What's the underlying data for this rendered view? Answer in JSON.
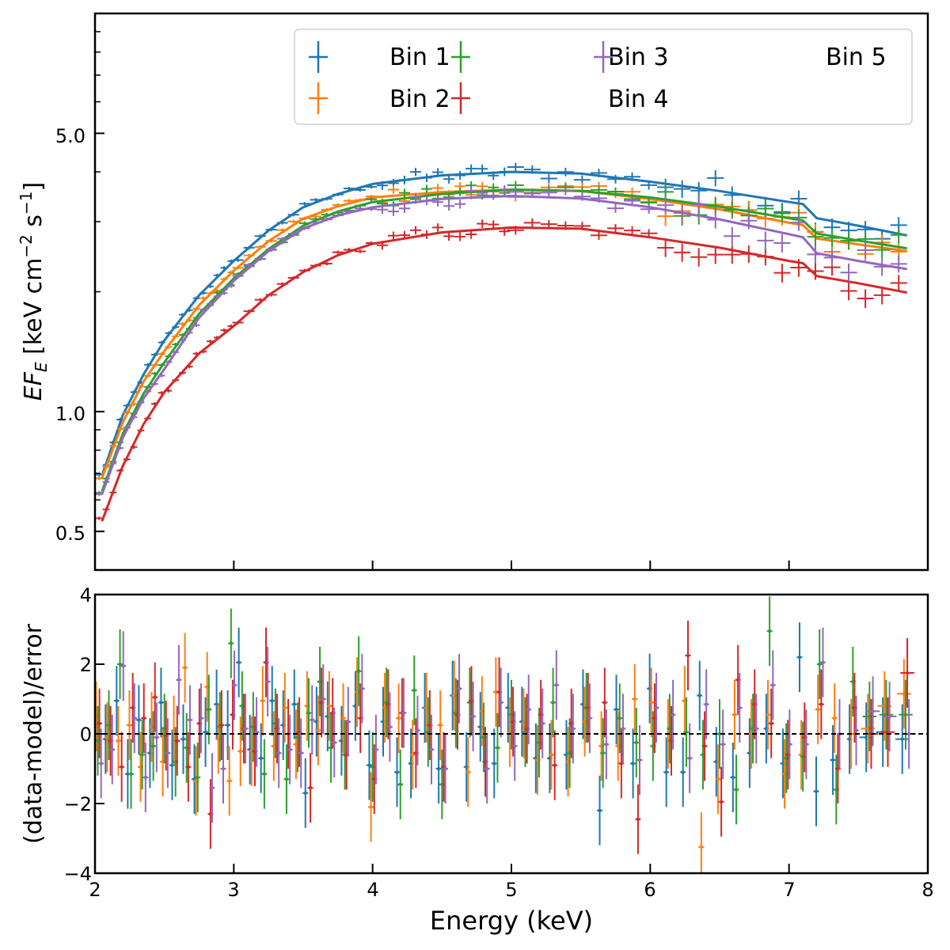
{
  "chart_data": [
    {
      "type": "line",
      "panel": "top",
      "title": "",
      "xlabel": "",
      "ylabel_main": "EF",
      "ylabel_sub": "E",
      "ylabel_units": " [keV cm",
      "ylabel_sup1": "−2",
      "ylabel_mid": " s",
      "ylabel_sup2": "−1",
      "ylabel_close": "]",
      "yscale": "log",
      "xlim": [
        2,
        8
      ],
      "ylim": [
        0.4,
        10
      ],
      "ytick_labels": [
        {
          "value": 0.5,
          "label": "0.5"
        },
        {
          "value": 1.0,
          "label": "1.0"
        },
        {
          "value": 5.0,
          "label": "5.0"
        }
      ],
      "y_minor_ticks": [
        0.4,
        0.6,
        0.7,
        0.8,
        0.9,
        2,
        3,
        4,
        6,
        7,
        8,
        9
      ],
      "xticks": [
        2,
        3,
        4,
        5,
        6,
        7,
        8
      ],
      "grid": false,
      "legend": {
        "placement": "top-right",
        "columns": 3,
        "entries": [
          {
            "label": "Bin 1",
            "color": "#1f77b4"
          },
          {
            "label": "Bin 2",
            "color": "#ff7f0e"
          },
          {
            "label": "Bin 3",
            "color": "#2ca02c"
          },
          {
            "label": "Bin 4",
            "color": "#d62728"
          },
          {
            "label": "Bin 5",
            "color": "#9467bd"
          }
        ]
      },
      "model_x": [
        2.05,
        2.2,
        2.35,
        2.5,
        2.75,
        3.0,
        3.25,
        3.5,
        3.75,
        4.0,
        4.5,
        5.0,
        5.5,
        6.0,
        6.5,
        7.0,
        7.1,
        7.2,
        7.5,
        7.85
      ],
      "series": [
        {
          "name": "Bin 1",
          "color": "#1f77b4",
          "model": [
            0.69,
            0.98,
            1.24,
            1.51,
            1.96,
            2.39,
            2.85,
            3.26,
            3.52,
            3.73,
            3.92,
            4.0,
            3.96,
            3.78,
            3.58,
            3.36,
            3.32,
            3.06,
            2.93,
            2.77
          ]
        },
        {
          "name": "Bin 2",
          "color": "#ff7f0e",
          "model": [
            0.68,
            0.94,
            1.19,
            1.42,
            1.85,
            2.26,
            2.68,
            3.05,
            3.28,
            3.45,
            3.56,
            3.61,
            3.58,
            3.42,
            3.22,
            2.98,
            2.94,
            2.72,
            2.63,
            2.53
          ]
        },
        {
          "name": "Bin 3",
          "color": "#2ca02c",
          "model": [
            0.63,
            0.88,
            1.11,
            1.33,
            1.76,
            2.16,
            2.56,
            2.93,
            3.18,
            3.36,
            3.52,
            3.61,
            3.58,
            3.45,
            3.27,
            3.06,
            3.02,
            2.8,
            2.69,
            2.57
          ]
        },
        {
          "name": "Bin 4",
          "color": "#d62728",
          "model": [
            0.53,
            0.73,
            0.93,
            1.12,
            1.4,
            1.64,
            1.96,
            2.24,
            2.47,
            2.64,
            2.82,
            2.9,
            2.88,
            2.74,
            2.58,
            2.39,
            2.36,
            2.19,
            2.1,
            1.99
          ]
        },
        {
          "name": "Bin 5",
          "color": "#9467bd",
          "model": [
            0.62,
            0.86,
            1.08,
            1.28,
            1.72,
            2.13,
            2.53,
            2.88,
            3.11,
            3.26,
            3.42,
            3.48,
            3.43,
            3.26,
            3.04,
            2.79,
            2.74,
            2.5,
            2.39,
            2.28
          ]
        }
      ],
      "data_note": "error-bar points scatter around each model with ~3% noise; x bin width ~0.05 keV at low E growing to ~0.15 keV at high E"
    },
    {
      "type": "scatter",
      "panel": "bottom",
      "xlabel": "Energy (keV)",
      "ylabel": "(data-model)/error",
      "xlim": [
        2,
        8
      ],
      "ylim": [
        -4,
        4
      ],
      "xtick_labels": [
        {
          "value": 2,
          "label": "2"
        },
        {
          "value": 3,
          "label": "3"
        },
        {
          "value": 4,
          "label": "4"
        },
        {
          "value": 5,
          "label": "5"
        },
        {
          "value": 6,
          "label": "6"
        },
        {
          "value": 7,
          "label": "7"
        },
        {
          "value": 8,
          "label": "8"
        }
      ],
      "ytick_labels": [
        {
          "value": -4,
          "label": "−4"
        },
        {
          "value": -2,
          "label": "−2"
        },
        {
          "value": 0,
          "label": "0"
        },
        {
          "value": 2,
          "label": "2"
        },
        {
          "value": 4,
          "label": "4"
        }
      ],
      "reference_line": {
        "y": 0,
        "style": "dashed",
        "color": "#000000"
      },
      "grid": false,
      "series": [
        {
          "name": "Bin 1",
          "color": "#1f77b4",
          "x": [
            2.02,
            2.1,
            2.18,
            2.26,
            2.34,
            2.42,
            2.5,
            2.58,
            2.66,
            2.74,
            2.82,
            2.9,
            2.98,
            3.06,
            3.14,
            3.22,
            3.3,
            3.38,
            3.46,
            3.54,
            3.62,
            3.7,
            3.8,
            3.9,
            4.0,
            4.1,
            4.2,
            4.3,
            4.4,
            4.5,
            4.6,
            4.7,
            4.8,
            4.9,
            5.0,
            5.1,
            5.2,
            5.3,
            5.42,
            5.54,
            5.66,
            5.78,
            5.9,
            6.02,
            6.14,
            6.26,
            6.38,
            6.5,
            6.62,
            6.74,
            6.86,
            6.98,
            7.1,
            7.22,
            7.34,
            7.46,
            7.58,
            7.7,
            7.84
          ],
          "y": [
            0.2,
            -0.15,
            0.95,
            -1.15,
            0.4,
            -0.55,
            0.9,
            -0.9,
            -0.15,
            -1.3,
            0.05,
            0.85,
            0.25,
            2.05,
            -0.45,
            -0.7,
            0.95,
            0.25,
            0.85,
            -1.7,
            0.35,
            0.5,
            -0.2,
            0.8,
            -0.9,
            0.35,
            -1.1,
            -0.85,
            0.75,
            -1.0,
            1.1,
            -0.95,
            0.2,
            -0.85,
            0.75,
            0.35,
            -0.7,
            -0.7,
            -0.6,
            0.85,
            -2.2,
            0.7,
            -0.85,
            1.3,
            -1.1,
            -1.1,
            1.1,
            -0.8,
            -1.25,
            -0.55,
            0.15,
            -0.85,
            2.2,
            -1.65,
            -0.75,
            -0.15,
            -0.1,
            0.05,
            -0.15
          ],
          "err": 1.0
        },
        {
          "name": "Bin 2",
          "color": "#ff7f0e",
          "x": [
            2.02,
            2.1,
            2.18,
            2.26,
            2.34,
            2.42,
            2.5,
            2.58,
            2.66,
            2.74,
            2.82,
            2.9,
            2.98,
            3.06,
            3.14,
            3.22,
            3.3,
            3.38,
            3.46,
            3.54,
            3.62,
            3.7,
            3.8,
            3.9,
            4.0,
            4.1,
            4.2,
            4.3,
            4.4,
            4.5,
            4.6,
            4.7,
            4.8,
            4.9,
            5.0,
            5.1,
            5.2,
            5.3,
            5.42,
            5.54,
            5.66,
            5.78,
            5.9,
            6.02,
            6.14,
            6.26,
            6.38,
            6.5,
            6.62,
            6.74,
            6.86,
            6.98,
            7.1,
            7.22,
            7.34,
            7.46,
            7.58,
            7.7,
            7.84
          ],
          "y": [
            0.5,
            -0.1,
            -0.2,
            0.25,
            -0.95,
            0.2,
            -0.8,
            0.1,
            1.9,
            -1.35,
            1.35,
            -0.15,
            -1.35,
            -0.5,
            -0.5,
            0.95,
            -0.35,
            0.75,
            -0.3,
            0.8,
            0.1,
            0.8,
            0.45,
            1.2,
            -2.1,
            0.75,
            0.45,
            -0.6,
            0.75,
            0.25,
            1.1,
            -1.1,
            0.65,
            1.2,
            0.05,
            0.3,
            -0.75,
            -0.6,
            -0.8,
            0.35,
            -0.35,
            -0.35,
            1.0,
            0.9,
            0.0,
            0.95,
            -3.25,
            -1.3,
            0.55,
            0.0,
            0.55,
            -1.15,
            -0.6,
            0.7,
            0.45,
            0.0,
            0.15,
            0.8,
            1.15
          ],
          "err": 1.0
        },
        {
          "name": "Bin 3",
          "color": "#2ca02c",
          "x": [
            2.02,
            2.1,
            2.18,
            2.26,
            2.34,
            2.42,
            2.5,
            2.58,
            2.66,
            2.74,
            2.82,
            2.9,
            2.98,
            3.06,
            3.14,
            3.22,
            3.3,
            3.38,
            3.46,
            3.54,
            3.62,
            3.7,
            3.8,
            3.9,
            4.0,
            4.1,
            4.2,
            4.3,
            4.4,
            4.5,
            4.6,
            4.7,
            4.8,
            4.9,
            5.0,
            5.1,
            5.2,
            5.3,
            5.42,
            5.54,
            5.66,
            5.78,
            5.9,
            6.02,
            6.14,
            6.26,
            6.38,
            6.5,
            6.62,
            6.74,
            6.86,
            6.98,
            7.1,
            7.22,
            7.34,
            7.46,
            7.58,
            7.7,
            7.84
          ],
          "y": [
            -0.2,
            0.25,
            2.0,
            -1.15,
            -0.6,
            -0.35,
            0.15,
            -0.8,
            -0.4,
            -1.25,
            0.7,
            0.2,
            2.6,
            0.8,
            0.2,
            -1.15,
            0.3,
            -1.3,
            -0.1,
            0.6,
            1.5,
            -0.4,
            -0.6,
            1.8,
            -0.95,
            0.9,
            -1.45,
            1.25,
            0.05,
            -1.45,
            0.6,
            0.9,
            -0.1,
            -0.4,
            0.55,
            0.05,
            -0.25,
            0.9,
            -0.55,
            0.75,
            -0.55,
            0.45,
            -0.25,
            -0.35,
            0.15,
            0.05,
            -0.6,
            0.0,
            -1.6,
            0.15,
            2.95,
            -0.7,
            -0.65,
            2.0,
            -1.6,
            1.5,
            0.5,
            0.55,
            0.55
          ],
          "err": 1.0
        },
        {
          "name": "Bin 4",
          "color": "#d62728",
          "x": [
            2.02,
            2.1,
            2.18,
            2.26,
            2.34,
            2.42,
            2.5,
            2.58,
            2.66,
            2.74,
            2.82,
            2.9,
            2.98,
            3.06,
            3.14,
            3.22,
            3.3,
            3.38,
            3.46,
            3.54,
            3.62,
            3.7,
            3.8,
            3.9,
            4.0,
            4.1,
            4.2,
            4.3,
            4.4,
            4.5,
            4.6,
            4.7,
            4.8,
            4.9,
            5.0,
            5.1,
            5.2,
            5.3,
            5.42,
            5.54,
            5.66,
            5.78,
            5.9,
            6.02,
            6.14,
            6.26,
            6.38,
            6.5,
            6.62,
            6.74,
            6.86,
            6.98,
            7.1,
            7.22,
            7.34,
            7.46,
            7.58,
            7.7,
            7.84
          ],
          "y": [
            0.3,
            -0.2,
            -0.95,
            0.75,
            0.45,
            1.05,
            -0.05,
            -0.2,
            -0.95,
            0.3,
            -2.3,
            0.25,
            0.55,
            0.15,
            -0.5,
            2.05,
            0.15,
            0.0,
            0.05,
            -1.55,
            0.9,
            0.6,
            -0.6,
            0.45,
            -1.3,
            0.85,
            0.6,
            -0.55,
            0.25,
            -0.95,
            0.55,
            0.95,
            -0.8,
            1.2,
            0.35,
            0.15,
            0.55,
            -0.9,
            0.3,
            0.75,
            0.9,
            -0.85,
            -2.45,
            0.45,
            -0.2,
            2.25,
            -0.35,
            -1.95,
            1.55,
            0.85,
            0.3,
            -0.6,
            -0.1,
            0.85,
            -1.0,
            0.75,
            0.0,
            0.05,
            1.75
          ],
          "err": 1.0
        },
        {
          "name": "Bin 5",
          "color": "#9467bd",
          "x": [
            2.02,
            2.1,
            2.18,
            2.26,
            2.34,
            2.42,
            2.5,
            2.58,
            2.66,
            2.74,
            2.82,
            2.9,
            2.98,
            3.06,
            3.14,
            3.22,
            3.3,
            3.38,
            3.46,
            3.54,
            3.62,
            3.7,
            3.8,
            3.9,
            4.0,
            4.1,
            4.2,
            4.3,
            4.4,
            4.5,
            4.6,
            4.7,
            4.8,
            4.9,
            5.0,
            5.1,
            5.2,
            5.3,
            5.42,
            5.54,
            5.66,
            5.78,
            5.9,
            6.02,
            6.14,
            6.26,
            6.38,
            6.5,
            6.62,
            6.74,
            6.86,
            6.98,
            7.1,
            7.22,
            7.34,
            7.46,
            7.58,
            7.7,
            7.84
          ],
          "y": [
            -0.85,
            -0.45,
            1.95,
            0.45,
            -1.25,
            -0.1,
            -0.55,
            1.55,
            0.4,
            0.45,
            -1.55,
            -1.0,
            1.4,
            0.15,
            0.05,
            1.5,
            -0.55,
            -0.45,
            -0.55,
            0.4,
            1.0,
            -0.25,
            0.35,
            1.3,
            -0.45,
            0.2,
            0.6,
            0.1,
            -0.45,
            -1.0,
            1.3,
            0.5,
            -1.0,
            0.9,
            -0.35,
            0.7,
            0.3,
            1.4,
            0.15,
            0.45,
            -0.3,
            0.15,
            -0.75,
            0.75,
            0.55,
            -0.7,
            0.85,
            -0.3,
            0.75,
            0.15,
            1.4,
            -0.3,
            -0.3,
            2.05,
            0.0,
            0.1,
            0.65,
            0.5,
            0.0
          ],
          "err": 1.0
        }
      ]
    }
  ]
}
